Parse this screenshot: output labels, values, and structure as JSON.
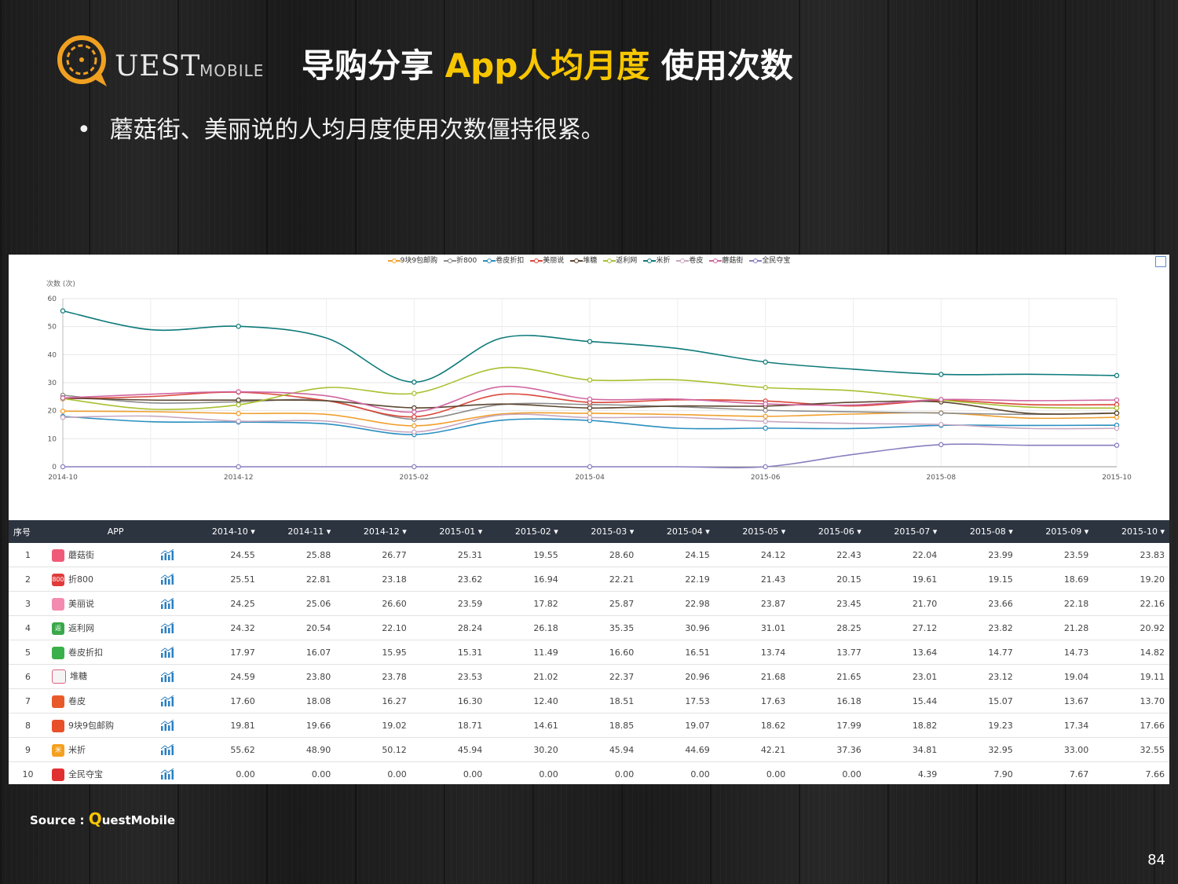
{
  "header": {
    "logo_text": "UEST",
    "logo_sub": "MOBILE",
    "title_part1": "导购分享",
    "title_highlight": "App人均月度",
    "title_part2": "使用次数",
    "bullet": "蘑菇街、美丽说的人均月度使用次数僵持很紧。"
  },
  "colors": {
    "accent": "#f7c600",
    "table_header": "#2c3440"
  },
  "chart_data": {
    "type": "line",
    "ylabel": "次数 (次)",
    "ylim": [
      0,
      60
    ],
    "yticks": [
      0,
      10,
      20,
      30,
      40,
      50,
      60
    ],
    "x": [
      "2014-10",
      "2014-11",
      "2014-12",
      "2015-01",
      "2015-02",
      "2015-03",
      "2015-04",
      "2015-05",
      "2015-06",
      "2015-07",
      "2015-08",
      "2015-09",
      "2015-10"
    ],
    "xtick_labels": [
      "2014-10",
      "2014-12",
      "2015-02",
      "2015-04",
      "2015-06",
      "2015-08",
      "2015-10"
    ],
    "legend_position": "top-center",
    "series": [
      {
        "name": "9块9包邮购",
        "color": "#f0a030",
        "values": [
          19.81,
          19.66,
          19.02,
          18.71,
          14.61,
          18.85,
          19.07,
          18.62,
          17.99,
          18.82,
          19.23,
          17.34,
          17.66
        ]
      },
      {
        "name": "折800",
        "color": "#8c8c8c",
        "values": [
          25.51,
          22.81,
          23.18,
          23.62,
          16.94,
          22.21,
          22.19,
          21.43,
          20.15,
          19.61,
          19.15,
          18.69,
          19.2
        ]
      },
      {
        "name": "卷皮折扣",
        "color": "#2a8fc0",
        "values": [
          17.97,
          16.07,
          15.95,
          15.31,
          11.49,
          16.6,
          16.51,
          13.74,
          13.77,
          13.64,
          14.77,
          14.73,
          14.82
        ]
      },
      {
        "name": "美丽说",
        "color": "#d9473a",
        "values": [
          24.25,
          25.06,
          26.6,
          23.59,
          17.82,
          25.87,
          22.98,
          23.87,
          23.45,
          21.7,
          23.66,
          22.18,
          22.16
        ]
      },
      {
        "name": "堆糖",
        "color": "#5c4630",
        "values": [
          24.59,
          23.8,
          23.78,
          23.53,
          21.02,
          22.37,
          20.96,
          21.68,
          21.65,
          23.01,
          23.12,
          19.04,
          19.11
        ]
      },
      {
        "name": "返利网",
        "color": "#a8c030",
        "values": [
          24.32,
          20.54,
          22.1,
          28.24,
          26.18,
          35.35,
          30.96,
          31.01,
          28.25,
          27.12,
          23.82,
          21.28,
          20.92
        ]
      },
      {
        "name": "米折",
        "color": "#0e7a7a",
        "values": [
          55.62,
          48.9,
          50.12,
          45.94,
          30.2,
          45.94,
          44.69,
          42.21,
          37.36,
          34.81,
          32.95,
          33.0,
          32.55
        ]
      },
      {
        "name": "卷皮",
        "color": "#c8a8c0",
        "values": [
          17.6,
          18.08,
          16.27,
          16.3,
          12.4,
          18.51,
          17.53,
          17.63,
          16.18,
          15.44,
          15.07,
          13.67,
          13.7
        ]
      },
      {
        "name": "蘑菇街",
        "color": "#d066a0",
        "values": [
          24.55,
          25.88,
          26.77,
          25.31,
          19.55,
          28.6,
          24.15,
          24.12,
          22.43,
          22.04,
          23.99,
          23.59,
          23.83
        ]
      },
      {
        "name": "全民夺宝",
        "color": "#8a7ec0",
        "values": [
          0.0,
          0.0,
          0.0,
          0.0,
          0.0,
          0.0,
          0.0,
          0.0,
          0.0,
          4.39,
          7.9,
          7.67,
          7.66
        ]
      }
    ]
  },
  "table": {
    "headers": [
      "序号",
      "APP",
      "2014-10 ▾",
      "2014-11 ▾",
      "2014-12 ▾",
      "2015-01 ▾",
      "2015-02 ▾",
      "2015-03 ▾",
      "2015-04 ▾",
      "2015-05 ▾",
      "2015-06 ▾",
      "2015-07 ▾",
      "2015-08 ▾",
      "2015-09 ▾",
      "2015-10 ▾"
    ],
    "rows": [
      {
        "idx": "1",
        "app": "蘑菇街",
        "icon_color": "#f05a78",
        "icon_glyph": "",
        "values": [
          "24.55",
          "25.88",
          "26.77",
          "25.31",
          "19.55",
          "28.60",
          "24.15",
          "24.12",
          "22.43",
          "22.04",
          "23.99",
          "23.59",
          "23.83"
        ]
      },
      {
        "idx": "2",
        "app": "折800",
        "icon_color": "#e03a3a",
        "icon_glyph": "800",
        "values": [
          "25.51",
          "22.81",
          "23.18",
          "23.62",
          "16.94",
          "22.21",
          "22.19",
          "21.43",
          "20.15",
          "19.61",
          "19.15",
          "18.69",
          "19.20"
        ]
      },
      {
        "idx": "3",
        "app": "美丽说",
        "icon_color": "#f38ab0",
        "icon_glyph": "",
        "values": [
          "24.25",
          "25.06",
          "26.60",
          "23.59",
          "17.82",
          "25.87",
          "22.98",
          "23.87",
          "23.45",
          "21.70",
          "23.66",
          "22.18",
          "22.16"
        ]
      },
      {
        "idx": "4",
        "app": "返利网",
        "icon_color": "#3aa84a",
        "icon_glyph": "返",
        "values": [
          "24.32",
          "20.54",
          "22.10",
          "28.24",
          "26.18",
          "35.35",
          "30.96",
          "31.01",
          "28.25",
          "27.12",
          "23.82",
          "21.28",
          "20.92"
        ]
      },
      {
        "idx": "5",
        "app": "卷皮折扣",
        "icon_color": "#3ab04a",
        "icon_glyph": "",
        "values": [
          "17.97",
          "16.07",
          "15.95",
          "15.31",
          "11.49",
          "16.60",
          "16.51",
          "13.74",
          "13.77",
          "13.64",
          "14.77",
          "14.73",
          "14.82"
        ]
      },
      {
        "idx": "6",
        "app": "堆糖",
        "icon_color": "#f4f4f4",
        "icon_glyph": "",
        "values": [
          "24.59",
          "23.80",
          "23.78",
          "23.53",
          "21.02",
          "22.37",
          "20.96",
          "21.68",
          "21.65",
          "23.01",
          "23.12",
          "19.04",
          "19.11"
        ]
      },
      {
        "idx": "7",
        "app": "卷皮",
        "icon_color": "#e85a2a",
        "icon_glyph": "",
        "values": [
          "17.60",
          "18.08",
          "16.27",
          "16.30",
          "12.40",
          "18.51",
          "17.53",
          "17.63",
          "16.18",
          "15.44",
          "15.07",
          "13.67",
          "13.70"
        ]
      },
      {
        "idx": "8",
        "app": "9块9包邮购",
        "icon_color": "#e8502a",
        "icon_glyph": "",
        "values": [
          "19.81",
          "19.66",
          "19.02",
          "18.71",
          "14.61",
          "18.85",
          "19.07",
          "18.62",
          "17.99",
          "18.82",
          "19.23",
          "17.34",
          "17.66"
        ]
      },
      {
        "idx": "9",
        "app": "米折",
        "icon_color": "#f4a020",
        "icon_glyph": "米",
        "values": [
          "55.62",
          "48.90",
          "50.12",
          "45.94",
          "30.20",
          "45.94",
          "44.69",
          "42.21",
          "37.36",
          "34.81",
          "32.95",
          "33.00",
          "32.55"
        ]
      },
      {
        "idx": "10",
        "app": "全民夺宝",
        "icon_color": "#e03030",
        "icon_glyph": "",
        "values": [
          "0.00",
          "0.00",
          "0.00",
          "0.00",
          "0.00",
          "0.00",
          "0.00",
          "0.00",
          "0.00",
          "4.39",
          "7.90",
          "7.67",
          "7.66"
        ]
      }
    ]
  },
  "footer": {
    "source_label": "Source : ",
    "source_q": "Q",
    "source_rest": "uestMobile",
    "page_number": "84"
  }
}
